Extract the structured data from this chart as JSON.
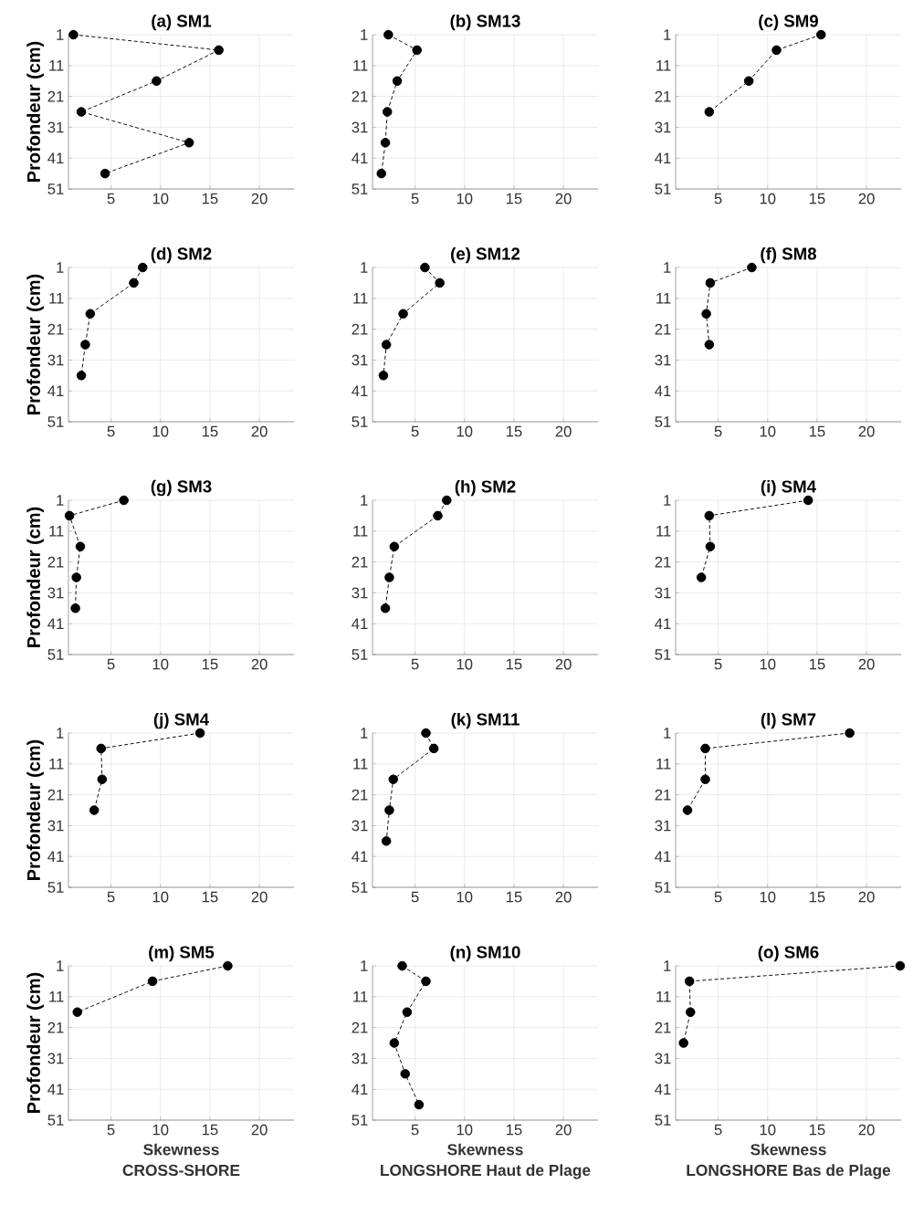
{
  "chart_data": [
    {
      "type": "line",
      "title": "(a) SM1",
      "ylabel": "Profondeur (cm)",
      "x": [
        1.2,
        15.9,
        9.6,
        2.0,
        12.9,
        4.4
      ],
      "values": [
        1,
        6,
        16,
        26,
        36,
        46
      ],
      "color": "#000000",
      "xlim": [
        0.7,
        23.5
      ],
      "ylim": [
        51,
        1
      ],
      "xticks": [
        5,
        10,
        15,
        20
      ],
      "yticks": [
        1,
        11,
        21,
        31,
        41,
        51
      ],
      "grid": true,
      "marker": "circle",
      "line_style": "dashed"
    },
    {
      "type": "line",
      "title": "(b) SM13",
      "x": [
        2.3,
        5.2,
        3.2,
        2.2,
        2.0,
        1.6
      ],
      "values": [
        1,
        6,
        16,
        26,
        36,
        46
      ],
      "color": "#000000",
      "xlim": [
        0.7,
        23.5
      ],
      "ylim": [
        51,
        1
      ],
      "xticks": [
        5,
        10,
        15,
        20
      ],
      "yticks": [
        1,
        11,
        21,
        31,
        41,
        51
      ],
      "grid": true,
      "marker": "circle",
      "line_style": "dashed"
    },
    {
      "type": "line",
      "title": "(c) SM9",
      "x": [
        15.4,
        10.9,
        8.1,
        4.1
      ],
      "values": [
        1,
        6,
        16,
        26
      ],
      "color": "#000000",
      "xlim": [
        0.7,
        23.5
      ],
      "ylim": [
        51,
        1
      ],
      "xticks": [
        5,
        10,
        15,
        20
      ],
      "yticks": [
        1,
        11,
        21,
        31,
        41,
        51
      ],
      "grid": true,
      "marker": "circle",
      "line_style": "dashed"
    },
    {
      "type": "line",
      "title": "(d) SM2",
      "ylabel": "Profondeur (cm)",
      "x": [
        8.2,
        7.3,
        2.9,
        2.4,
        2.0
      ],
      "values": [
        1,
        6,
        16,
        26,
        36
      ],
      "color": "#000000",
      "xlim": [
        0.7,
        23.5
      ],
      "ylim": [
        51,
        1
      ],
      "xticks": [
        5,
        10,
        15,
        20
      ],
      "yticks": [
        1,
        11,
        21,
        31,
        41,
        51
      ],
      "grid": true,
      "marker": "circle",
      "line_style": "dashed"
    },
    {
      "type": "line",
      "title": "(e) SM12",
      "x": [
        6.0,
        7.5,
        3.8,
        2.1,
        1.8
      ],
      "values": [
        1,
        6,
        16,
        26,
        36
      ],
      "color": "#000000",
      "xlim": [
        0.7,
        23.5
      ],
      "ylim": [
        51,
        1
      ],
      "xticks": [
        5,
        10,
        15,
        20
      ],
      "yticks": [
        1,
        11,
        21,
        31,
        41,
        51
      ],
      "grid": true,
      "marker": "circle",
      "line_style": "dashed"
    },
    {
      "type": "line",
      "title": "(f) SM8",
      "x": [
        8.4,
        4.2,
        3.8,
        4.1
      ],
      "values": [
        1,
        6,
        16,
        26
      ],
      "color": "#000000",
      "xlim": [
        0.7,
        23.5
      ],
      "ylim": [
        51,
        1
      ],
      "xticks": [
        5,
        10,
        15,
        20
      ],
      "yticks": [
        1,
        11,
        21,
        31,
        41,
        51
      ],
      "grid": true,
      "marker": "circle",
      "line_style": "dashed"
    },
    {
      "type": "line",
      "title": "(g) SM3",
      "ylabel": "Profondeur (cm)",
      "x": [
        6.3,
        0.8,
        1.9,
        1.5,
        1.4
      ],
      "values": [
        1,
        6,
        16,
        26,
        36
      ],
      "color": "#000000",
      "xlim": [
        0.7,
        23.5
      ],
      "ylim": [
        51,
        1
      ],
      "xticks": [
        5,
        10,
        15,
        20
      ],
      "yticks": [
        1,
        11,
        21,
        31,
        41,
        51
      ],
      "grid": true,
      "marker": "circle",
      "line_style": "dashed"
    },
    {
      "type": "line",
      "title": "(h) SM2",
      "x": [
        8.2,
        7.3,
        2.9,
        2.4,
        2.0
      ],
      "values": [
        1,
        6,
        16,
        26,
        36
      ],
      "color": "#000000",
      "xlim": [
        0.7,
        23.5
      ],
      "ylim": [
        51,
        1
      ],
      "xticks": [
        5,
        10,
        15,
        20
      ],
      "yticks": [
        1,
        11,
        21,
        31,
        41,
        51
      ],
      "grid": true,
      "marker": "circle",
      "line_style": "dashed"
    },
    {
      "type": "line",
      "title": "(i) SM4",
      "x": [
        14.1,
        4.1,
        4.2,
        3.3
      ],
      "values": [
        1,
        6,
        16,
        26
      ],
      "color": "#000000",
      "xlim": [
        0.7,
        23.5
      ],
      "ylim": [
        51,
        1
      ],
      "xticks": [
        5,
        10,
        15,
        20
      ],
      "yticks": [
        1,
        11,
        21,
        31,
        41,
        51
      ],
      "grid": true,
      "marker": "circle",
      "line_style": "dashed"
    },
    {
      "type": "line",
      "title": "(j) SM4",
      "ylabel": "Profondeur (cm)",
      "x": [
        14.0,
        4.0,
        4.1,
        3.3
      ],
      "values": [
        1,
        6,
        16,
        26
      ],
      "color": "#000000",
      "xlim": [
        0.7,
        23.5
      ],
      "ylim": [
        51,
        1
      ],
      "xticks": [
        5,
        10,
        15,
        20
      ],
      "yticks": [
        1,
        11,
        21,
        31,
        41,
        51
      ],
      "grid": true,
      "marker": "circle",
      "line_style": "dashed"
    },
    {
      "type": "line",
      "title": "(k) SM11",
      "x": [
        6.1,
        6.9,
        2.8,
        2.4,
        2.1
      ],
      "values": [
        1,
        6,
        16,
        26,
        36
      ],
      "color": "#000000",
      "xlim": [
        0.7,
        23.5
      ],
      "ylim": [
        51,
        1
      ],
      "xticks": [
        5,
        10,
        15,
        20
      ],
      "yticks": [
        1,
        11,
        21,
        31,
        41,
        51
      ],
      "grid": true,
      "marker": "circle",
      "line_style": "dashed"
    },
    {
      "type": "line",
      "title": "(l) SM7",
      "x": [
        18.3,
        3.7,
        3.7,
        1.9
      ],
      "values": [
        1,
        6,
        16,
        26
      ],
      "color": "#000000",
      "xlim": [
        0.7,
        23.5
      ],
      "ylim": [
        51,
        1
      ],
      "xticks": [
        5,
        10,
        15,
        20
      ],
      "yticks": [
        1,
        11,
        21,
        31,
        41,
        51
      ],
      "grid": true,
      "marker": "circle",
      "line_style": "dashed"
    },
    {
      "type": "line",
      "title": "(m) SM5",
      "ylabel": "Profondeur (cm)",
      "xlabel": "Skewness",
      "annotations": [
        "CROSS-SHORE"
      ],
      "x": [
        16.8,
        9.2,
        1.6
      ],
      "values": [
        1,
        6,
        16
      ],
      "color": "#000000",
      "xlim": [
        0.7,
        23.5
      ],
      "ylim": [
        51,
        1
      ],
      "xticks": [
        5,
        10,
        15,
        20
      ],
      "yticks": [
        1,
        11,
        21,
        31,
        41,
        51
      ],
      "grid": true,
      "marker": "circle",
      "line_style": "dashed"
    },
    {
      "type": "line",
      "title": "(n) SM10",
      "xlabel": "Skewness",
      "annotations": [
        "LONGSHORE Haut de Plage"
      ],
      "x": [
        3.7,
        6.1,
        4.2,
        2.9,
        4.0,
        5.4
      ],
      "values": [
        1,
        6,
        16,
        26,
        36,
        46
      ],
      "color": "#000000",
      "xlim": [
        0.7,
        23.5
      ],
      "ylim": [
        51,
        1
      ],
      "xticks": [
        5,
        10,
        15,
        20
      ],
      "yticks": [
        1,
        11,
        21,
        31,
        41,
        51
      ],
      "grid": true,
      "marker": "circle",
      "line_style": "dashed"
    },
    {
      "type": "line",
      "title": "(o) SM6",
      "xlabel": "Skewness",
      "annotations": [
        "LONGSHORE Bas de Plage"
      ],
      "x": [
        23.4,
        2.1,
        2.2,
        1.5
      ],
      "values": [
        1,
        6,
        16,
        26
      ],
      "color": "#000000",
      "xlim": [
        0.7,
        23.5
      ],
      "ylim": [
        51,
        1
      ],
      "xticks": [
        5,
        10,
        15,
        20
      ],
      "yticks": [
        1,
        11,
        21,
        31,
        41,
        51
      ],
      "grid": true,
      "marker": "circle",
      "line_style": "dashed"
    }
  ]
}
